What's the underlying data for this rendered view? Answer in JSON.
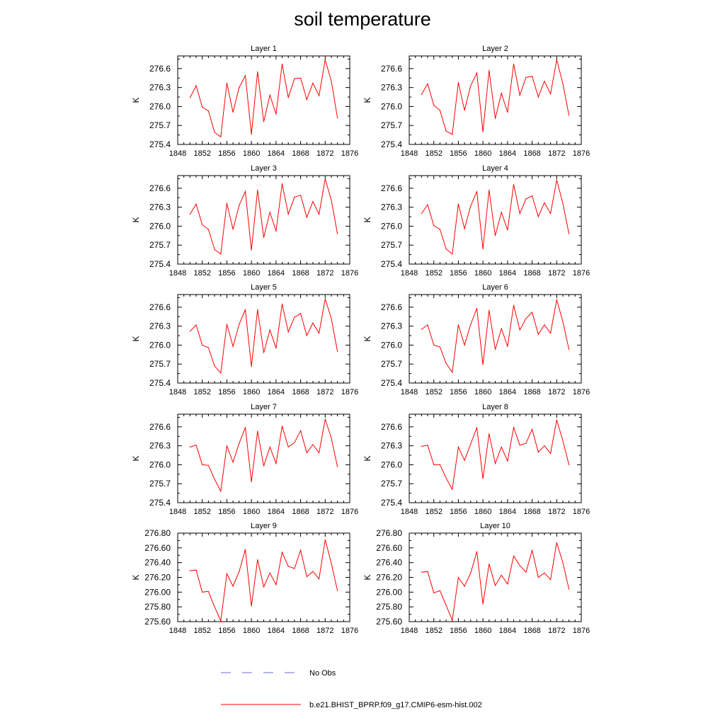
{
  "figure": {
    "title": "soil temperature"
  },
  "legend": {
    "entries": [
      {
        "label": "No Obs",
        "color": "#6b6bd6",
        "style": "dashed"
      },
      {
        "label": "b.e21.BHIST_BPRP.f09_g17.CMIP6-esm-hist.002",
        "color": "#ff0000",
        "style": "solid"
      }
    ]
  },
  "chart_data": [
    {
      "type": "line",
      "title": "Layer 1",
      "xlabel": "",
      "ylabel": "K",
      "xlim": [
        1848,
        1876
      ],
      "ylim": [
        275.4,
        276.8
      ],
      "xticks": [
        1848,
        1852,
        1856,
        1860,
        1864,
        1868,
        1872,
        1876
      ],
      "yticks": [
        275.4,
        275.7,
        276.0,
        276.3,
        276.6
      ],
      "ytick_decimals": 1,
      "x": [
        1850,
        1851,
        1852,
        1853,
        1854,
        1855,
        1856,
        1857,
        1858,
        1859,
        1860,
        1861,
        1862,
        1863,
        1864,
        1865,
        1866,
        1867,
        1868,
        1869,
        1870,
        1871,
        1872,
        1873,
        1874
      ],
      "series": [
        {
          "name": "b.e21.BHIST_BPRP.f09_g17.CMIP6-esm-hist.002",
          "color": "#ff0000",
          "values": [
            276.14,
            276.33,
            275.99,
            275.93,
            275.59,
            275.52,
            276.37,
            275.91,
            276.3,
            276.49,
            275.56,
            276.55,
            275.76,
            276.18,
            275.88,
            276.67,
            276.14,
            276.44,
            276.45,
            276.11,
            276.37,
            276.17,
            276.74,
            276.4,
            275.82
          ]
        }
      ]
    },
    {
      "type": "line",
      "title": "Layer 2",
      "xlabel": "",
      "ylabel": "K",
      "xlim": [
        1848,
        1876
      ],
      "ylim": [
        275.4,
        276.8
      ],
      "xticks": [
        1848,
        1852,
        1856,
        1860,
        1864,
        1868,
        1872,
        1876
      ],
      "yticks": [
        275.4,
        275.7,
        276.0,
        276.3,
        276.6
      ],
      "ytick_decimals": 1,
      "x": [
        1850,
        1851,
        1852,
        1853,
        1854,
        1855,
        1856,
        1857,
        1858,
        1859,
        1860,
        1861,
        1862,
        1863,
        1864,
        1865,
        1866,
        1867,
        1868,
        1869,
        1870,
        1871,
        1872,
        1873,
        1874
      ],
      "series": [
        {
          "name": "b.e21.BHIST_BPRP.f09_g17.CMIP6-esm-hist.002",
          "color": "#ff0000",
          "values": [
            276.19,
            276.36,
            276.02,
            275.94,
            275.61,
            275.56,
            276.38,
            275.94,
            276.33,
            276.53,
            275.6,
            276.57,
            275.81,
            276.21,
            275.91,
            276.67,
            276.18,
            276.46,
            276.48,
            276.15,
            276.4,
            276.2,
            276.74,
            276.36,
            275.86
          ]
        }
      ]
    },
    {
      "type": "line",
      "title": "Layer 3",
      "xlabel": "",
      "ylabel": "K",
      "xlim": [
        1848,
        1876
      ],
      "ylim": [
        275.4,
        276.8
      ],
      "xticks": [
        1848,
        1852,
        1856,
        1860,
        1864,
        1868,
        1872,
        1876
      ],
      "yticks": [
        275.4,
        275.7,
        276.0,
        276.3,
        276.6
      ],
      "ytick_decimals": 1,
      "x": [
        1850,
        1851,
        1852,
        1853,
        1854,
        1855,
        1856,
        1857,
        1858,
        1859,
        1860,
        1861,
        1862,
        1863,
        1864,
        1865,
        1866,
        1867,
        1868,
        1869,
        1870,
        1871,
        1872,
        1873,
        1874
      ],
      "series": [
        {
          "name": "b.e21.BHIST_BPRP.f09_g17.CMIP6-esm-hist.002",
          "color": "#ff0000",
          "values": [
            276.19,
            276.35,
            276.02,
            275.95,
            275.63,
            275.56,
            276.36,
            275.95,
            276.33,
            276.55,
            275.62,
            276.57,
            275.82,
            276.22,
            275.92,
            276.67,
            276.19,
            276.46,
            276.49,
            276.14,
            276.39,
            276.19,
            276.75,
            276.41,
            275.88
          ]
        }
      ]
    },
    {
      "type": "line",
      "title": "Layer 4",
      "xlabel": "",
      "ylabel": "K",
      "xlim": [
        1848,
        1876
      ],
      "ylim": [
        275.4,
        276.8
      ],
      "xticks": [
        1848,
        1852,
        1856,
        1860,
        1864,
        1868,
        1872,
        1876
      ],
      "yticks": [
        275.4,
        275.7,
        276.0,
        276.3,
        276.6
      ],
      "ytick_decimals": 1,
      "x": [
        1850,
        1851,
        1852,
        1853,
        1854,
        1855,
        1856,
        1857,
        1858,
        1859,
        1860,
        1861,
        1862,
        1863,
        1864,
        1865,
        1866,
        1867,
        1868,
        1869,
        1870,
        1871,
        1872,
        1873,
        1874
      ],
      "series": [
        {
          "name": "b.e21.BHIST_BPRP.f09_g17.CMIP6-esm-hist.002",
          "color": "#ff0000",
          "values": [
            276.2,
            276.34,
            276.01,
            275.95,
            275.64,
            275.56,
            276.35,
            275.96,
            276.32,
            276.55,
            275.64,
            276.57,
            275.85,
            276.22,
            275.94,
            276.66,
            276.2,
            276.43,
            276.48,
            276.15,
            276.37,
            276.2,
            276.73,
            276.36,
            275.88
          ]
        }
      ]
    },
    {
      "type": "line",
      "title": "Layer 5",
      "xlabel": "",
      "ylabel": "K",
      "xlim": [
        1848,
        1876
      ],
      "ylim": [
        275.4,
        276.8
      ],
      "xticks": [
        1848,
        1852,
        1856,
        1860,
        1864,
        1868,
        1872,
        1876
      ],
      "yticks": [
        275.4,
        275.7,
        276.0,
        276.3,
        276.6
      ],
      "ytick_decimals": 1,
      "x": [
        1850,
        1851,
        1852,
        1853,
        1854,
        1855,
        1856,
        1857,
        1858,
        1859,
        1860,
        1861,
        1862,
        1863,
        1864,
        1865,
        1866,
        1867,
        1868,
        1869,
        1870,
        1871,
        1872,
        1873,
        1874
      ],
      "series": [
        {
          "name": "b.e21.BHIST_BPRP.f09_g17.CMIP6-esm-hist.002",
          "color": "#ff0000",
          "values": [
            276.22,
            276.32,
            276.0,
            275.96,
            275.67,
            275.56,
            276.33,
            275.98,
            276.33,
            276.56,
            275.66,
            276.56,
            275.88,
            276.24,
            275.95,
            276.65,
            276.21,
            276.44,
            276.5,
            276.15,
            276.35,
            276.19,
            276.73,
            276.42,
            275.9
          ]
        }
      ]
    },
    {
      "type": "line",
      "title": "Layer 6",
      "xlabel": "",
      "ylabel": "K",
      "xlim": [
        1848,
        1876
      ],
      "ylim": [
        275.4,
        276.8
      ],
      "xticks": [
        1848,
        1852,
        1856,
        1860,
        1864,
        1868,
        1872,
        1876
      ],
      "yticks": [
        275.4,
        275.7,
        276.0,
        276.3,
        276.6
      ],
      "ytick_decimals": 1,
      "x": [
        1850,
        1851,
        1852,
        1853,
        1854,
        1855,
        1856,
        1857,
        1858,
        1859,
        1860,
        1861,
        1862,
        1863,
        1864,
        1865,
        1866,
        1867,
        1868,
        1869,
        1870,
        1871,
        1872,
        1873,
        1874
      ],
      "series": [
        {
          "name": "b.e21.BHIST_BPRP.f09_g17.CMIP6-esm-hist.002",
          "color": "#ff0000",
          "values": [
            276.25,
            276.32,
            276.0,
            275.97,
            275.71,
            275.57,
            276.32,
            276.0,
            276.33,
            276.58,
            275.69,
            276.55,
            275.93,
            276.26,
            275.98,
            276.63,
            276.24,
            276.42,
            276.52,
            276.17,
            276.32,
            276.19,
            276.72,
            276.37,
            275.93
          ]
        }
      ]
    },
    {
      "type": "line",
      "title": "Layer 7",
      "xlabel": "",
      "ylabel": "K",
      "xlim": [
        1848,
        1876
      ],
      "ylim": [
        275.4,
        276.8
      ],
      "xticks": [
        1848,
        1852,
        1856,
        1860,
        1864,
        1868,
        1872,
        1876
      ],
      "yticks": [
        275.4,
        275.7,
        276.0,
        276.3,
        276.6
      ],
      "ytick_decimals": 1,
      "x": [
        1850,
        1851,
        1852,
        1853,
        1854,
        1855,
        1856,
        1857,
        1858,
        1859,
        1860,
        1861,
        1862,
        1863,
        1864,
        1865,
        1866,
        1867,
        1868,
        1869,
        1870,
        1871,
        1872,
        1873,
        1874
      ],
      "series": [
        {
          "name": "b.e21.BHIST_BPRP.f09_g17.CMIP6-esm-hist.002",
          "color": "#ff0000",
          "values": [
            276.28,
            276.31,
            276.0,
            275.99,
            275.77,
            275.58,
            276.3,
            276.04,
            276.34,
            276.59,
            275.73,
            276.53,
            275.98,
            276.28,
            276.02,
            276.61,
            276.28,
            276.35,
            276.54,
            276.19,
            276.32,
            276.19,
            276.72,
            276.42,
            275.97
          ]
        }
      ]
    },
    {
      "type": "line",
      "title": "Layer 8",
      "xlabel": "",
      "ylabel": "K",
      "xlim": [
        1848,
        1876
      ],
      "ylim": [
        275.4,
        276.8
      ],
      "xticks": [
        1848,
        1852,
        1856,
        1860,
        1864,
        1868,
        1872,
        1876
      ],
      "yticks": [
        275.4,
        275.7,
        276.0,
        276.3,
        276.6
      ],
      "ytick_decimals": 1,
      "x": [
        1850,
        1851,
        1852,
        1853,
        1854,
        1855,
        1856,
        1857,
        1858,
        1859,
        1860,
        1861,
        1862,
        1863,
        1864,
        1865,
        1866,
        1867,
        1868,
        1869,
        1870,
        1871,
        1872,
        1873,
        1874
      ],
      "series": [
        {
          "name": "b.e21.BHIST_BPRP.f09_g17.CMIP6-esm-hist.002",
          "color": "#ff0000",
          "values": [
            276.29,
            276.31,
            276.0,
            276.0,
            275.79,
            275.61,
            276.28,
            276.07,
            276.33,
            276.59,
            275.78,
            276.49,
            276.02,
            276.28,
            276.06,
            276.59,
            276.31,
            276.34,
            276.56,
            276.2,
            276.3,
            276.18,
            276.71,
            276.38,
            276.0
          ]
        }
      ]
    },
    {
      "type": "line",
      "title": "Layer 9",
      "xlabel": "",
      "ylabel": "K",
      "xlim": [
        1848,
        1876
      ],
      "ylim": [
        275.6,
        276.8
      ],
      "xticks": [
        1848,
        1852,
        1856,
        1860,
        1864,
        1868,
        1872,
        1876
      ],
      "yticks": [
        275.6,
        275.8,
        276.0,
        276.2,
        276.4,
        276.6,
        276.8
      ],
      "ytick_decimals": 2,
      "x": [
        1850,
        1851,
        1852,
        1853,
        1854,
        1855,
        1856,
        1857,
        1858,
        1859,
        1860,
        1861,
        1862,
        1863,
        1864,
        1865,
        1866,
        1867,
        1868,
        1869,
        1870,
        1871,
        1872,
        1873,
        1874
      ],
      "series": [
        {
          "name": "b.e21.BHIST_BPRP.f09_g17.CMIP6-esm-hist.002",
          "color": "#ff0000",
          "values": [
            276.29,
            276.3,
            276.0,
            276.01,
            275.8,
            275.61,
            276.25,
            276.08,
            276.28,
            276.58,
            275.81,
            276.44,
            276.07,
            276.26,
            276.1,
            276.54,
            276.35,
            276.32,
            276.57,
            276.21,
            276.28,
            276.18,
            276.71,
            276.39,
            276.02
          ]
        }
      ]
    },
    {
      "type": "line",
      "title": "Layer 10",
      "xlabel": "",
      "ylabel": "K",
      "xlim": [
        1848,
        1876
      ],
      "ylim": [
        275.6,
        276.8
      ],
      "xticks": [
        1848,
        1852,
        1856,
        1860,
        1864,
        1868,
        1872,
        1876
      ],
      "yticks": [
        275.6,
        275.8,
        276.0,
        276.2,
        276.4,
        276.6,
        276.8
      ],
      "ytick_decimals": 2,
      "x": [
        1850,
        1851,
        1852,
        1853,
        1854,
        1855,
        1856,
        1857,
        1858,
        1859,
        1860,
        1861,
        1862,
        1863,
        1864,
        1865,
        1866,
        1867,
        1868,
        1869,
        1870,
        1871,
        1872,
        1873,
        1874
      ],
      "series": [
        {
          "name": "b.e21.BHIST_BPRP.f09_g17.CMIP6-esm-hist.002",
          "color": "#ff0000",
          "values": [
            276.27,
            276.28,
            275.99,
            276.02,
            275.82,
            275.62,
            276.2,
            276.08,
            276.26,
            276.55,
            275.84,
            276.38,
            276.09,
            276.23,
            276.11,
            276.49,
            276.36,
            276.27,
            276.57,
            276.2,
            276.26,
            276.17,
            276.67,
            276.4,
            276.04
          ]
        }
      ]
    }
  ]
}
